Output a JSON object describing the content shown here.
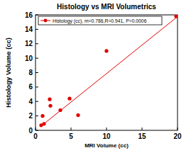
{
  "chart_data": {
    "type": "scatter",
    "title": "Histology vs MRI Volumetrics",
    "x_label": "MRI Volume (cc)",
    "y_label": "Histology Volume (cc)",
    "series": [
      {
        "name": "Histology (cc), m=0.786,R=0.941, P=0.0006",
        "color": "#e00000",
        "marker": "circle",
        "x": [
          0.8,
          1.0,
          1.2,
          2.0,
          2.1,
          3.5,
          4.8,
          6.0,
          10.0,
          19.8
        ],
        "values": [
          0.7,
          2.0,
          0.9,
          4.3,
          3.4,
          2.8,
          4.4,
          2.1,
          11.0,
          15.8
        ]
      }
    ],
    "trend_line": {
      "x": [
        0.8,
        19.8
      ],
      "values": [
        0.6,
        15.6
      ]
    },
    "xlim": [
      0,
      20
    ],
    "ylim": [
      0,
      16
    ],
    "xticks": [
      0,
      5,
      10,
      15,
      20
    ],
    "yticks": [
      0,
      2,
      4,
      6,
      8,
      10,
      12,
      14,
      16
    ],
    "grid": false,
    "legend": "top-left"
  }
}
